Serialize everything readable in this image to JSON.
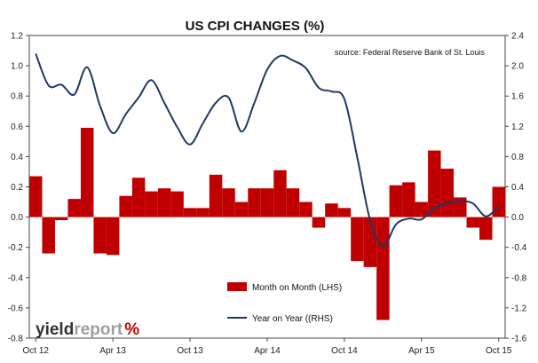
{
  "chart_data": {
    "type": "bar+line",
    "title": "US CPI CHANGES (%)",
    "source": "source: Federal Reserve Bank of St. Louis",
    "brand": {
      "part1": "yield",
      "part2": "report",
      "mark": "%"
    },
    "x_tick_labels": [
      "Oct 12",
      "Apr 13",
      "Oct 13",
      "Apr 14",
      "Oct 14",
      "Apr 15",
      "Oct 15"
    ],
    "x_tick_index": [
      0,
      6,
      12,
      18,
      24,
      30,
      36
    ],
    "y_left": {
      "min": -0.8,
      "max": 1.2,
      "step": 0.2,
      "ticks": [
        "-0.8",
        "-0.6",
        "-0.4",
        "-0.2",
        "0.0",
        "0.2",
        "0.4",
        "0.6",
        "0.8",
        "1.0",
        "1.2"
      ]
    },
    "y_right": {
      "min": -1.6,
      "max": 2.4,
      "step": 0.4,
      "ticks": [
        "-1.6",
        "-1.2",
        "-0.8",
        "-0.4",
        "0.0",
        "0.4",
        "0.8",
        "1.2",
        "1.6",
        "2.0",
        "2.4"
      ]
    },
    "series": [
      {
        "name": "Month on Month (LHS)",
        "type": "bar",
        "axis": "left",
        "color": "#c00000",
        "values": [
          0.27,
          -0.24,
          -0.02,
          0.12,
          0.59,
          -0.24,
          -0.25,
          0.14,
          0.26,
          0.17,
          0.19,
          0.17,
          0.06,
          0.06,
          0.28,
          0.19,
          0.1,
          0.19,
          0.19,
          0.31,
          0.19,
          0.1,
          -0.07,
          0.09,
          0.06,
          -0.29,
          -0.33,
          -0.68,
          0.21,
          0.23,
          0.1,
          0.44,
          0.32,
          0.13,
          -0.07,
          -0.15,
          0.2
        ]
      },
      {
        "name": "Year on Year ((RHS)",
        "type": "line",
        "axis": "right",
        "color": "#1f3864",
        "values": [
          2.16,
          1.74,
          1.75,
          1.62,
          1.98,
          1.47,
          1.11,
          1.36,
          1.58,
          1.81,
          1.51,
          1.19,
          0.96,
          1.24,
          1.51,
          1.58,
          1.13,
          1.51,
          1.95,
          2.13,
          2.07,
          1.97,
          1.71,
          1.66,
          1.56,
          0.79,
          -0.04,
          -0.39,
          -0.1,
          -0.02,
          -0.03,
          0.12,
          0.18,
          0.21,
          0.18,
          0.01,
          0.14
        ]
      }
    ]
  }
}
